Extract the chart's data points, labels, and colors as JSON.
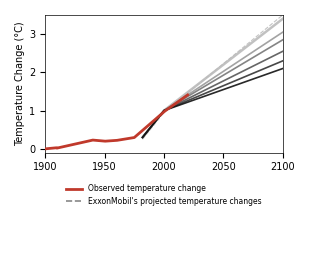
{
  "title": "",
  "xlabel": "",
  "ylabel": "Temperature Change (°C)",
  "xlim": [
    1900,
    2100
  ],
  "ylim": [
    -0.1,
    3.5
  ],
  "xticks": [
    1900,
    1950,
    2000,
    2050,
    2100
  ],
  "yticks": [
    0,
    1,
    2,
    3
  ],
  "legend_observed": "Observed temperature change",
  "legend_projected": "ExxonMobil's projected temperature changes",
  "obs_color": "#c0392b",
  "proj_colors": [
    "#111111",
    "#333333",
    "#555555",
    "#777777",
    "#999999",
    "#bbbbbb"
  ],
  "dotted_color": "#aaaaaa",
  "background_color": "#ffffff"
}
